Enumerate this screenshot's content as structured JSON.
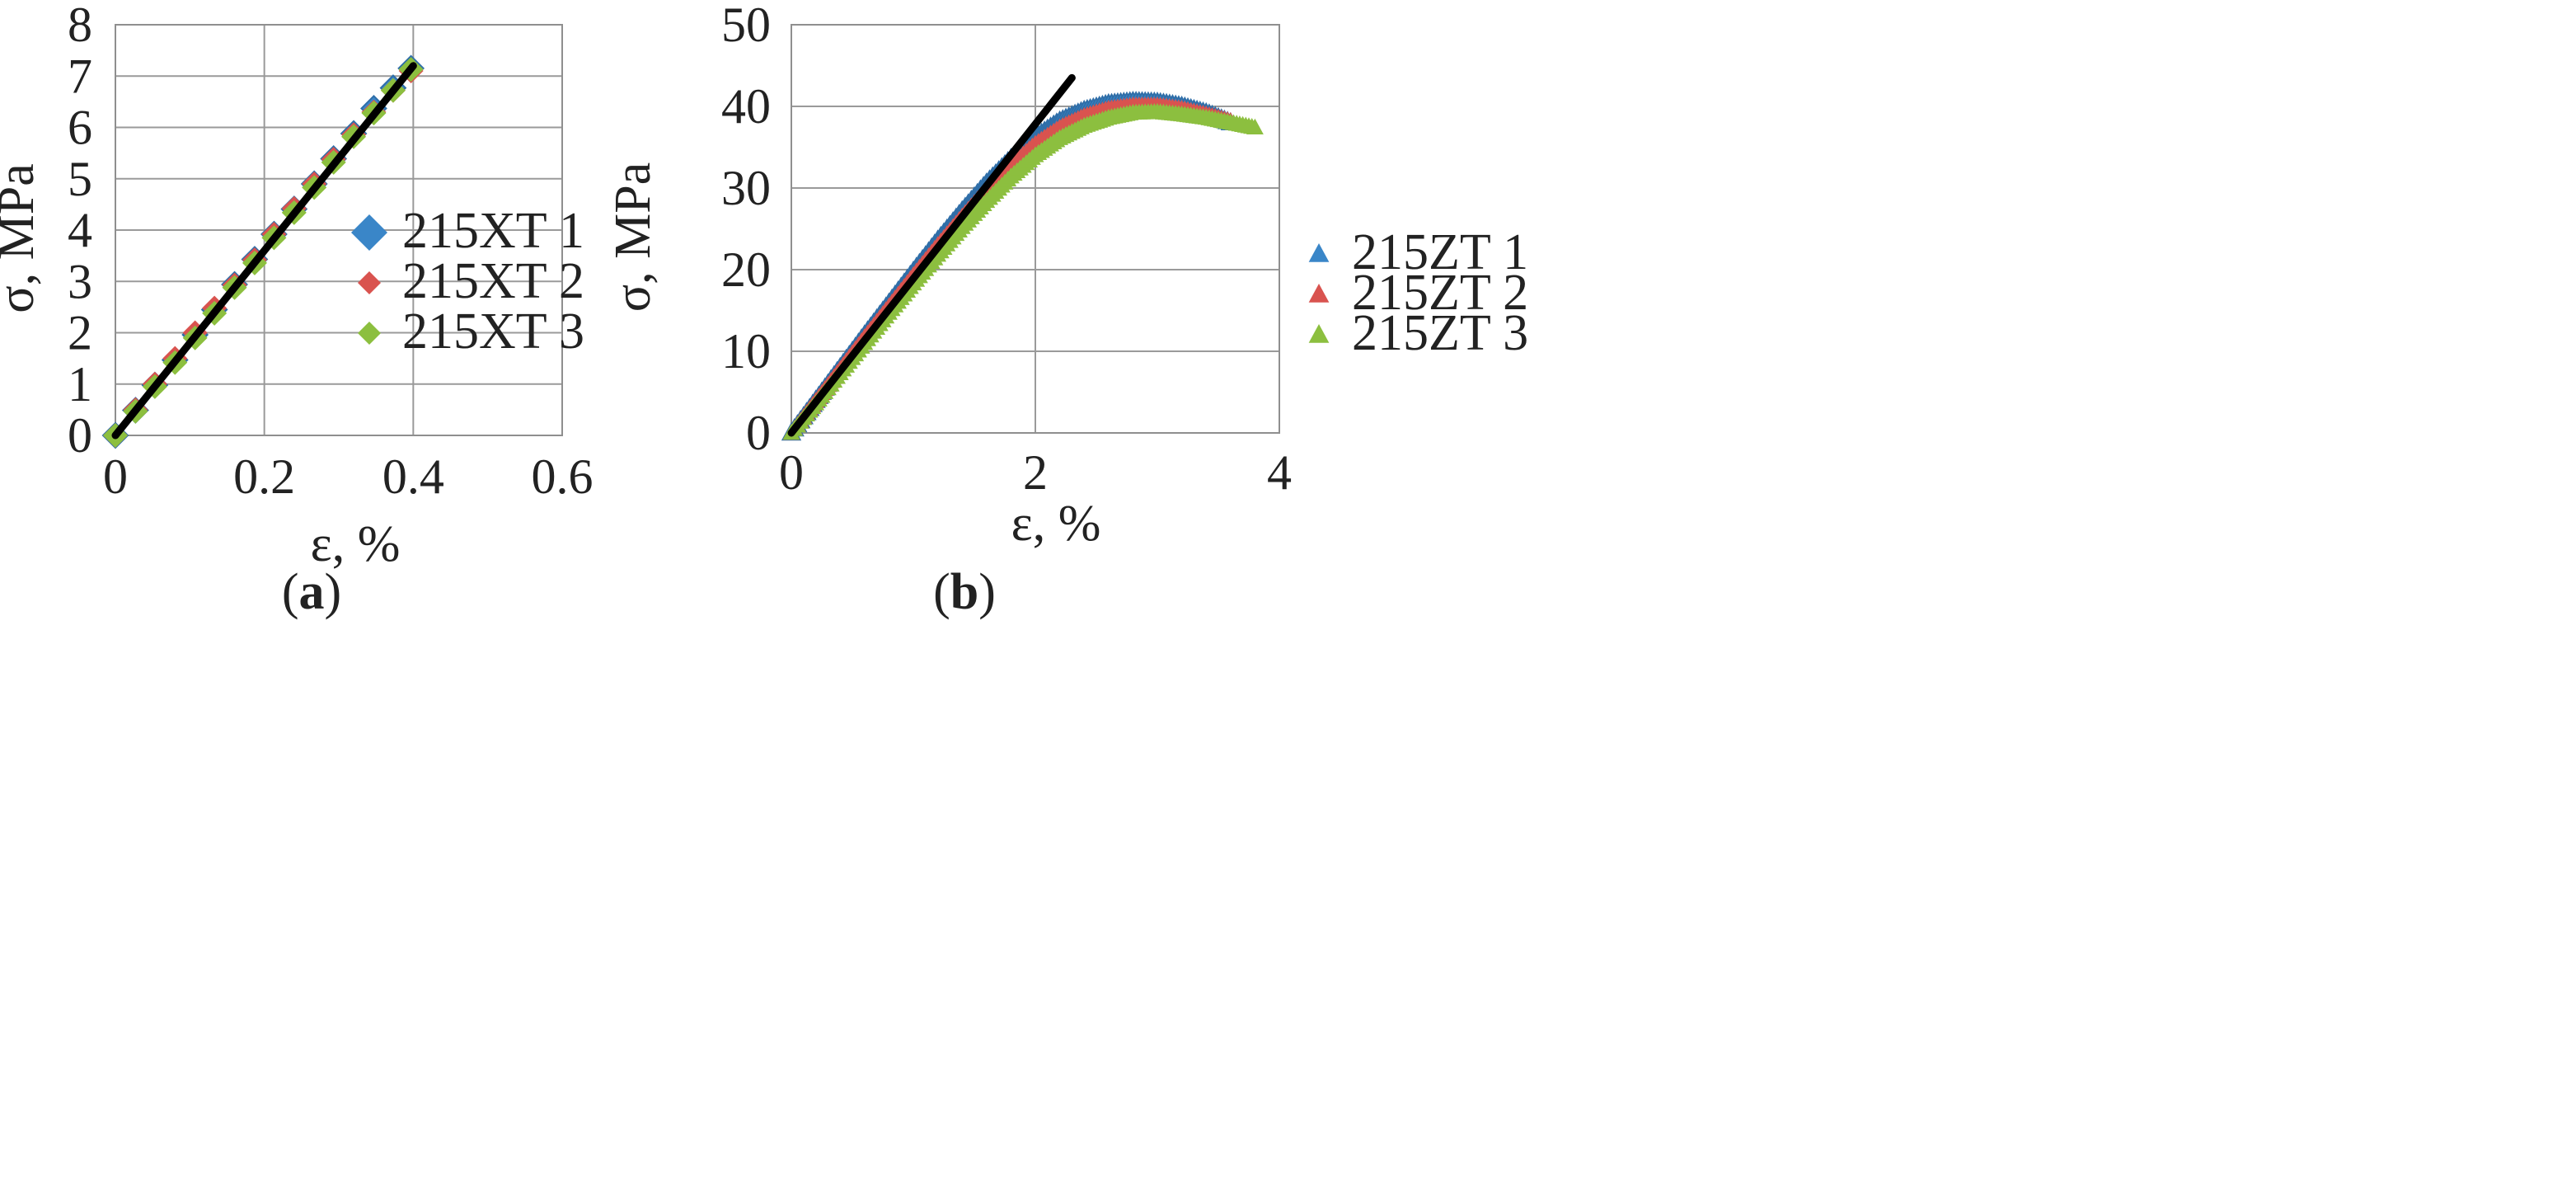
{
  "chart_data": [
    {
      "panel": "a",
      "type": "scatter",
      "caption": "(a)",
      "xlabel": "ε, %",
      "ylabel": "σ, MPa",
      "xlim": [
        0,
        0.6
      ],
      "ylim": [
        0,
        8
      ],
      "xticks": [
        0,
        0.2,
        0.4,
        0.6
      ],
      "yticks": [
        0,
        1,
        2,
        3,
        4,
        5,
        6,
        7,
        8
      ],
      "grid": true,
      "legend_position": "right",
      "series": [
        {
          "name": "215XT 1",
          "marker": "diamond",
          "color": "#3a86c8",
          "x": [
            0.0,
            0.027,
            0.053,
            0.08,
            0.107,
            0.133,
            0.16,
            0.187,
            0.213,
            0.24,
            0.267,
            0.293,
            0.32,
            0.347,
            0.373,
            0.397
          ],
          "y": [
            0.0,
            0.49,
            0.98,
            1.47,
            1.96,
            2.45,
            2.94,
            3.43,
            3.92,
            4.41,
            4.9,
            5.39,
            5.88,
            6.37,
            6.77,
            7.15
          ]
        },
        {
          "name": "215XT 2",
          "marker": "diamond",
          "color": "#d9534f",
          "x": [
            0.0,
            0.027,
            0.053,
            0.08,
            0.107,
            0.133,
            0.16,
            0.187,
            0.213,
            0.24,
            0.267,
            0.293,
            0.32,
            0.347,
            0.373,
            0.397
          ],
          "y": [
            0.0,
            0.5,
            1.0,
            1.5,
            2.0,
            2.48,
            2.93,
            3.42,
            3.92,
            4.42,
            4.9,
            5.38,
            5.86,
            6.3,
            6.72,
            7.1
          ]
        },
        {
          "name": "215XT 3",
          "marker": "diamond",
          "color": "#8cbf3f",
          "x": [
            0.0,
            0.027,
            0.053,
            0.08,
            0.107,
            0.133,
            0.16,
            0.187,
            0.213,
            0.24,
            0.267,
            0.293,
            0.32,
            0.347,
            0.373,
            0.397
          ],
          "y": [
            0.0,
            0.47,
            0.95,
            1.42,
            1.9,
            2.38,
            2.88,
            3.36,
            3.85,
            4.34,
            4.83,
            5.32,
            5.82,
            6.28,
            6.72,
            7.13
          ]
        }
      ],
      "fit_line": {
        "color": "#000000",
        "x": [
          0.0,
          0.4
        ],
        "y": [
          0.0,
          7.2
        ]
      }
    },
    {
      "panel": "b",
      "type": "scatter",
      "caption": "(b)",
      "xlabel": "ε, %",
      "ylabel": "σ, MPa",
      "xlim": [
        0,
        4
      ],
      "ylim": [
        0,
        50
      ],
      "xticks": [
        0,
        2,
        4
      ],
      "yticks": [
        0,
        10,
        20,
        30,
        40,
        50
      ],
      "grid": true,
      "legend_position": "right",
      "series": [
        {
          "name": "215ZT 1",
          "marker": "triangle",
          "color": "#3a86c8",
          "x": [
            0.0,
            0.2,
            0.4,
            0.6,
            0.8,
            1.0,
            1.2,
            1.4,
            1.6,
            1.8,
            2.0,
            2.2,
            2.4,
            2.6,
            2.8,
            3.0,
            3.2,
            3.4,
            3.6
          ],
          "y": [
            0.0,
            4.0,
            8.0,
            12.0,
            15.9,
            19.8,
            23.6,
            27.2,
            30.6,
            33.6,
            36.2,
            38.2,
            39.5,
            40.3,
            40.6,
            40.5,
            40.0,
            39.2,
            38.0
          ]
        },
        {
          "name": "215ZT 2",
          "marker": "triangle",
          "color": "#d9534f",
          "x": [
            0.0,
            0.2,
            0.4,
            0.6,
            0.8,
            1.0,
            1.2,
            1.4,
            1.6,
            1.8,
            2.0,
            2.2,
            2.4,
            2.6,
            2.8,
            3.0,
            3.2,
            3.4,
            3.6
          ],
          "y": [
            0.0,
            3.9,
            7.8,
            11.7,
            15.5,
            19.3,
            23.0,
            26.5,
            29.8,
            32.8,
            35.4,
            37.4,
            38.8,
            39.7,
            40.1,
            40.1,
            39.7,
            39.0,
            38.2
          ]
        },
        {
          "name": "215ZT 3",
          "marker": "triangle",
          "color": "#8cbf3f",
          "x": [
            0.0,
            0.2,
            0.4,
            0.6,
            0.8,
            1.0,
            1.2,
            1.4,
            1.6,
            1.8,
            2.0,
            2.2,
            2.4,
            2.6,
            2.8,
            3.0,
            3.2,
            3.4,
            3.6,
            3.8
          ],
          "y": [
            0.0,
            3.6,
            7.3,
            11.0,
            14.7,
            18.3,
            21.8,
            25.2,
            28.4,
            31.4,
            34.0,
            36.1,
            37.6,
            38.6,
            39.2,
            39.3,
            39.0,
            38.6,
            38.0,
            37.4
          ]
        }
      ],
      "fit_line": {
        "color": "#000000",
        "x": [
          0.0,
          2.3
        ],
        "y": [
          0.0,
          43.5
        ]
      }
    }
  ]
}
